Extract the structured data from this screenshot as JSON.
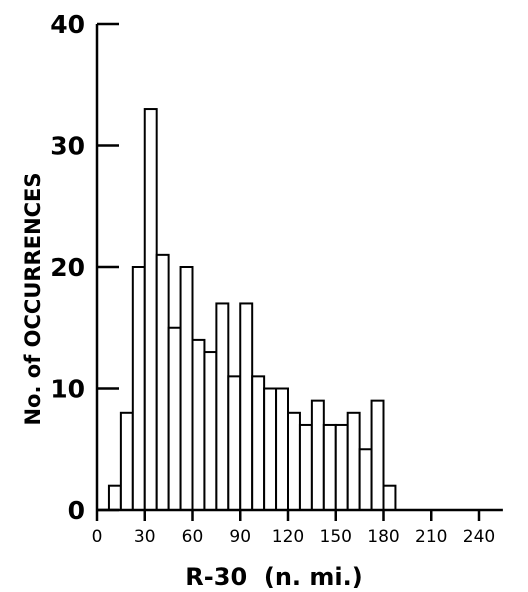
{
  "chart_data": {
    "type": "bar",
    "title": "",
    "xlabel": "R-30  (n. mi.)",
    "ylabel": "No. of OCCURRENCES",
    "xlim": [
      0,
      255
    ],
    "ylim": [
      0,
      40
    ],
    "bin_width": 7.5,
    "x_ticks": [
      0,
      30,
      60,
      90,
      120,
      150,
      180,
      210,
      240
    ],
    "x_tick_labels": [
      "0",
      "30",
      "60",
      "90",
      "120",
      "150",
      "180",
      "210",
      "240"
    ],
    "y_ticks": [
      0,
      10,
      20,
      30,
      40
    ],
    "y_tick_labels": [
      "0",
      "10",
      "20",
      "30",
      "40"
    ],
    "bins": [
      {
        "start": 7.5,
        "value": 2
      },
      {
        "start": 15,
        "value": 8
      },
      {
        "start": 22.5,
        "value": 20
      },
      {
        "start": 30,
        "value": 33
      },
      {
        "start": 37.5,
        "value": 21
      },
      {
        "start": 45,
        "value": 15
      },
      {
        "start": 52.5,
        "value": 20
      },
      {
        "start": 60,
        "value": 14
      },
      {
        "start": 67.5,
        "value": 13
      },
      {
        "start": 75,
        "value": 17
      },
      {
        "start": 82.5,
        "value": 11
      },
      {
        "start": 90,
        "value": 17
      },
      {
        "start": 97.5,
        "value": 11
      },
      {
        "start": 105,
        "value": 10
      },
      {
        "start": 112.5,
        "value": 10
      },
      {
        "start": 120,
        "value": 8
      },
      {
        "start": 127.5,
        "value": 7
      },
      {
        "start": 135,
        "value": 9
      },
      {
        "start": 142.5,
        "value": 7
      },
      {
        "start": 150,
        "value": 7
      },
      {
        "start": 157.5,
        "value": 8
      },
      {
        "start": 165,
        "value": 5
      },
      {
        "start": 172.5,
        "value": 9
      },
      {
        "start": 180,
        "value": 2
      }
    ],
    "grid": false,
    "legend": "none",
    "bar_fill": "#ffffff",
    "stroke_color": "#000000"
  }
}
